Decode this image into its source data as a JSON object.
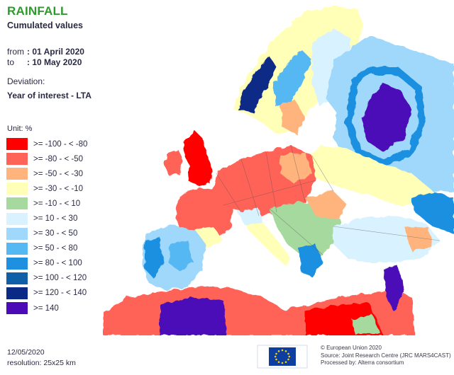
{
  "header": {
    "title": "RAINFALL",
    "subtitle": "Cumulated values",
    "from_label": "from",
    "from_value": ": 01 April 2020",
    "to_label": "to",
    "to_value": ": 10 May 2020",
    "deviation_label": "Deviation:",
    "deviation_value": "Year of interest - LTA"
  },
  "legend": {
    "unit": "Unit:  %",
    "items": [
      {
        "label": ">= -100 - < -80",
        "color": "#ff0000"
      },
      {
        "label": ">= -80 - < -50",
        "color": "#ff6257"
      },
      {
        "label": ">= -50 - < -30",
        "color": "#ffb47d"
      },
      {
        "label": ">= -30 - < -10",
        "color": "#ffffb8"
      },
      {
        "label": ">= -10 - < 10",
        "color": "#a6d99e"
      },
      {
        "label": ">= 10 - < 30",
        "color": "#d9f2ff"
      },
      {
        "label": ">= 30 - < 50",
        "color": "#9fd8fb"
      },
      {
        "label": ">= 50 - < 80",
        "color": "#54b8f2"
      },
      {
        "label": ">= 80 - < 100",
        "color": "#1f90e0"
      },
      {
        "label": ">= 100 - < 120",
        "color": "#0f5ea8"
      },
      {
        "label": ">= 120 - < 140",
        "color": "#0a2a86"
      },
      {
        "label": ">= 140",
        "color": "#4b0cb8"
      }
    ]
  },
  "footer": {
    "date": "12/05/2020",
    "resolution": "resolution:  25x25 km",
    "credits": [
      "© European Union 2020",
      "Source: Joint Research Centre (JRC MARS4CAST)",
      "Processed by: Alterra consortium"
    ]
  },
  "colors": {
    "sea": "#ffffff",
    "border": "#555555"
  }
}
